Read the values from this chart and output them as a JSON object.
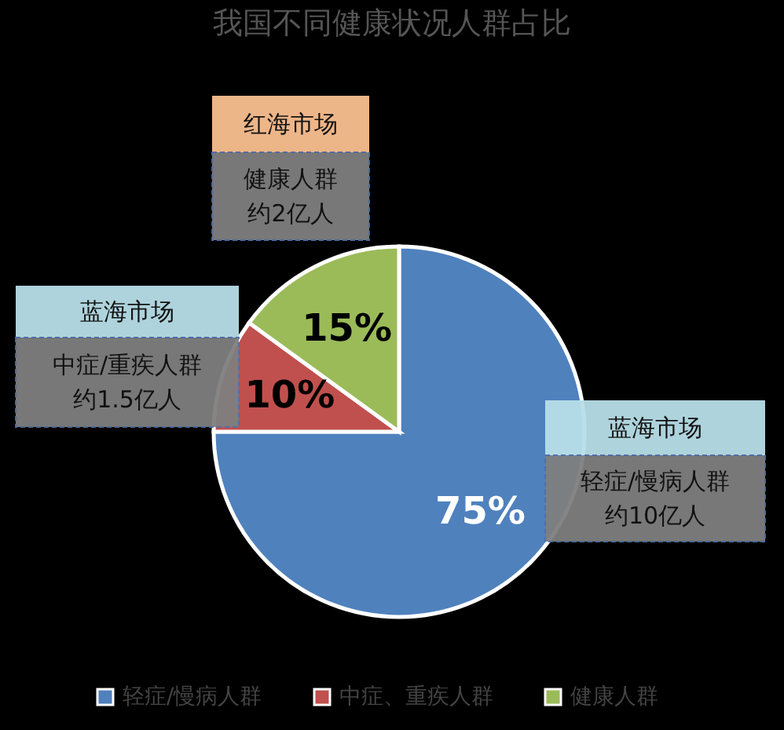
{
  "chart_data": {
    "type": "pie",
    "title": "我国不同健康状况人群占比",
    "categories": [
      "轻症/慢病人群",
      "中症、重疾人群",
      "健康人群"
    ],
    "values": [
      75,
      10,
      15
    ],
    "colors": [
      "#4f81bd",
      "#c0504d",
      "#9bbb59"
    ],
    "value_labels": [
      "75%",
      "10%",
      "15%"
    ],
    "legend": "bottom",
    "annotations": [
      "红海市场",
      "健康人群",
      "约2亿人",
      "蓝海市场",
      "中症/重疾人群",
      "约1.5亿人",
      "蓝海市场",
      "轻症/慢病人群",
      "约10亿人"
    ]
  }
}
